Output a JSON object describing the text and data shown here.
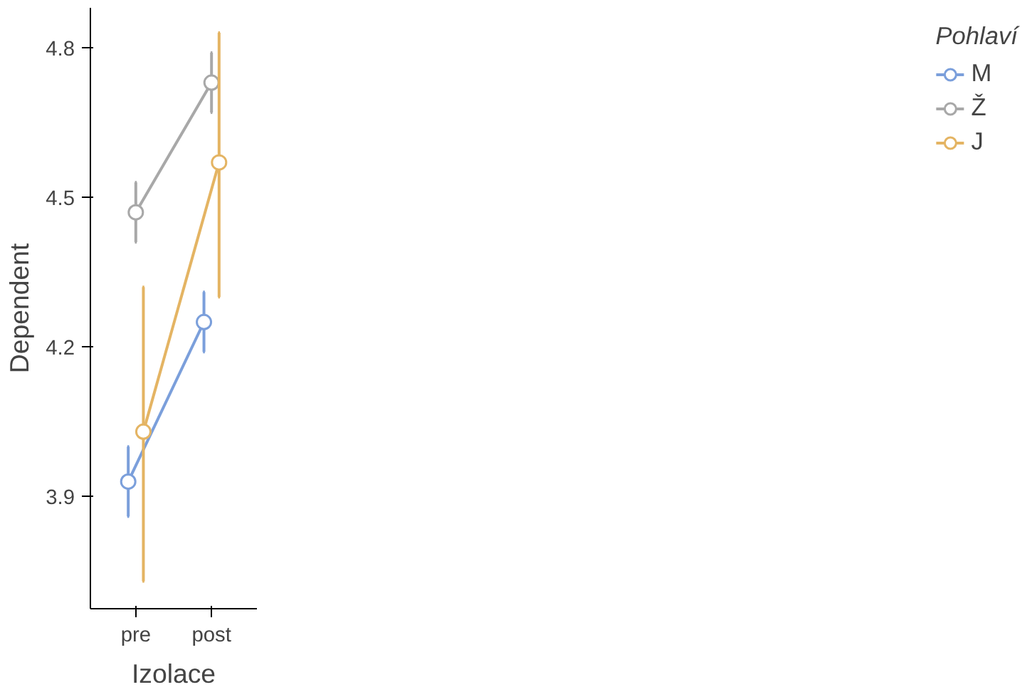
{
  "chart_data": {
    "type": "line",
    "xlabel": "Izolace",
    "ylabel": "Dependent",
    "legend_title": "Pohlaví",
    "categories": [
      "pre",
      "post"
    ],
    "series": [
      {
        "name": "M",
        "color": "#7b9fdb",
        "values": [
          3.93,
          4.25
        ],
        "errors": [
          [
            3.86,
            4.0
          ],
          [
            4.19,
            4.31
          ]
        ]
      },
      {
        "name": "Ž",
        "color": "#a8a8a8",
        "values": [
          4.47,
          4.73
        ],
        "errors": [
          [
            4.41,
            4.53
          ],
          [
            4.67,
            4.79
          ]
        ]
      },
      {
        "name": "J",
        "color": "#e4b463",
        "values": [
          4.03,
          4.57
        ],
        "errors": [
          [
            3.73,
            4.32
          ],
          [
            4.3,
            4.83
          ]
        ]
      }
    ],
    "ylim": [
      3.675,
      4.88
    ],
    "yticks": [
      3.9,
      4.2,
      4.5,
      4.8
    ],
    "grid": false,
    "legend": "right",
    "marker": "circle",
    "line_style": "solid"
  }
}
